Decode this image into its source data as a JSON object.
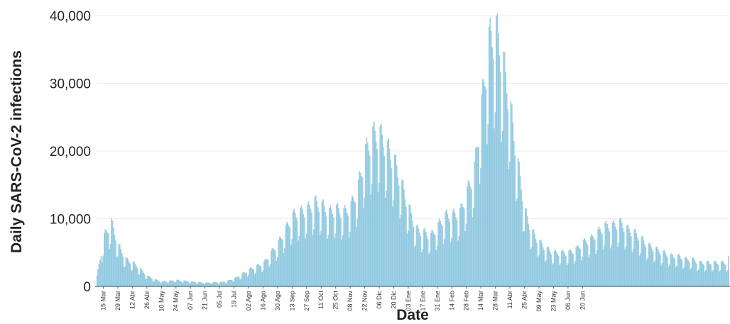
{
  "chart_data": {
    "type": "bar",
    "title": "",
    "xlabel": "Date",
    "ylabel": "Daily SARS-CoV-2 infections",
    "ylim": [
      0,
      40000
    ],
    "yticks": [
      0,
      10000,
      20000,
      30000,
      40000
    ],
    "ytick_labels": [
      "0",
      "10,000",
      "20,000",
      "30,000",
      "40,000"
    ],
    "xtick_labels": [
      "15 Mar",
      "29 Mar",
      "12 Abr",
      "26 Abr",
      "10 May",
      "24 May",
      "07 Jun",
      "21 Jun",
      "05 Jul",
      "19 Jul",
      "02 Ago",
      "16 Ago",
      "30 Ago",
      "13 Sep",
      "27 Sep",
      "11 Oct",
      "25 Oct",
      "08 Nov",
      "22 Nov",
      "06 Dic",
      "20 Dic",
      "03 Ene",
      "17 Ene",
      "31 Ene",
      "14 Feb",
      "28 Feb",
      "14 Mar",
      "28 Mar",
      "11 Abr",
      "25 Abr",
      "09 May",
      "23 May",
      "06 Jun",
      "20 Jun"
    ],
    "grid": true,
    "bar_color": "#a8d5e8",
    "series": [
      {
        "period_days": 7,
        "weekly_values": [
          1500,
          7500,
          9500,
          6000,
          4000,
          3500,
          2500,
          1500,
          1000,
          700,
          800,
          900,
          800,
          700,
          600,
          500,
          600,
          600,
          800,
          1200,
          1800,
          2500,
          3000,
          3500,
          5000,
          6500,
          8500,
          10500,
          11000,
          11500,
          12500,
          12000,
          11000,
          11500,
          11000,
          12000,
          15000,
          20000,
          22500,
          22500,
          20500,
          18500,
          15000,
          11500,
          8500,
          8000,
          7500,
          9000,
          10500,
          10500,
          11000,
          14000,
          17500,
          27000,
          36500,
          38000,
          33000,
          26000,
          18000,
          11000,
          8000,
          6500,
          5500,
          5000,
          5000,
          5000,
          5500,
          6500,
          7000,
          8000,
          9000,
          9000,
          9500,
          8500,
          8000,
          7000,
          6000,
          5500,
          5000,
          4500,
          4500,
          4000,
          4000,
          3500,
          3500,
          3500,
          3500
        ]
      }
    ],
    "weekly_pattern": [
      1.05,
      1.08,
      1.02,
      0.95,
      0.9,
      0.62,
      0.68
    ],
    "last_value": 4500
  }
}
